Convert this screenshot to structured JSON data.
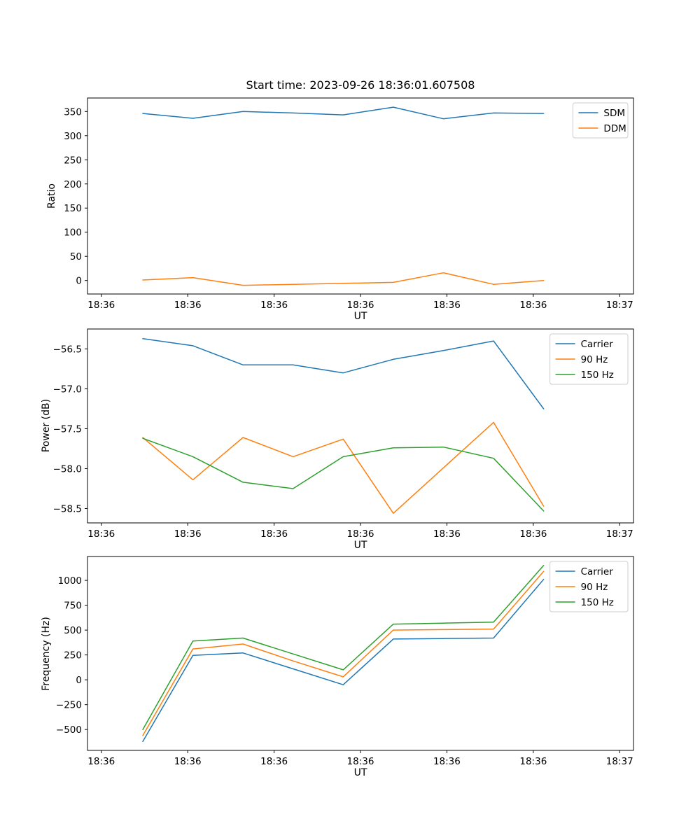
{
  "figure": {
    "background": "#ffffff",
    "frame_color": "#000000",
    "legend_border_color": "#cccccc"
  },
  "chart_data": [
    {
      "type": "line",
      "title": "Start time: 2023-09-26 18:36:01.607508",
      "xlabel": "UT",
      "ylabel": "Ratio",
      "legend_position": "upper right",
      "grid": false,
      "x": [
        4.8,
        10.6,
        16.4,
        22.2,
        28.0,
        33.8,
        39.6,
        45.4,
        51.2
      ],
      "xlim": [
        -1.6,
        61.6
      ],
      "xtick_positions": [
        0,
        10,
        20,
        30,
        40,
        50,
        60
      ],
      "xtick_labels": [
        "18:36",
        "18:36",
        "18:36",
        "18:36",
        "18:36",
        "18:36",
        "18:37"
      ],
      "ylim": [
        -28,
        378
      ],
      "yticks": [
        0,
        50,
        100,
        150,
        200,
        250,
        300,
        350
      ],
      "series": [
        {
          "name": "SDM",
          "color": "#1f77b4",
          "values": [
            346,
            336,
            350,
            347,
            343,
            359,
            335,
            347,
            346
          ]
        },
        {
          "name": "DDM",
          "color": "#ff7f0e",
          "values": [
            1,
            6,
            -10,
            -8,
            -6,
            -4,
            16,
            -8,
            0
          ]
        }
      ]
    },
    {
      "type": "line",
      "xlabel": "UT",
      "ylabel": "Power (dB)",
      "legend_position": "upper right",
      "grid": false,
      "x": [
        4.8,
        10.6,
        16.4,
        22.2,
        28.0,
        33.8,
        39.6,
        45.4,
        51.2
      ],
      "xlim": [
        -1.6,
        61.6
      ],
      "xtick_positions": [
        0,
        10,
        20,
        30,
        40,
        50,
        60
      ],
      "xtick_labels": [
        "18:36",
        "18:36",
        "18:36",
        "18:36",
        "18:36",
        "18:36",
        "18:37"
      ],
      "ylim": [
        -58.68,
        -56.25
      ],
      "yticks": [
        -58.5,
        -58.0,
        -57.5,
        -57.0,
        -56.5
      ],
      "series": [
        {
          "name": "Carrier",
          "color": "#1f77b4",
          "values": [
            -56.37,
            -56.46,
            -56.7,
            -56.7,
            -56.8,
            -56.63,
            -56.52,
            -56.4,
            -57.25
          ]
        },
        {
          "name": "90 Hz",
          "color": "#ff7f0e",
          "values": [
            -57.61,
            -58.14,
            -57.61,
            -57.85,
            -57.63,
            -58.56,
            -57.99,
            -57.42,
            -58.47
          ]
        },
        {
          "name": "150 Hz",
          "color": "#2ca02c",
          "values": [
            -57.62,
            -57.85,
            -58.17,
            -58.25,
            -57.85,
            -57.74,
            -57.73,
            -57.87,
            -58.53
          ]
        }
      ]
    },
    {
      "type": "line",
      "xlabel": "UT",
      "ylabel": "Frequency (Hz)",
      "legend_position": "upper right",
      "grid": false,
      "x": [
        4.8,
        10.6,
        16.4,
        22.2,
        28.0,
        33.8,
        39.6,
        45.4,
        51.2
      ],
      "xlim": [
        -1.6,
        61.6
      ],
      "xtick_positions": [
        0,
        10,
        20,
        30,
        40,
        50,
        60
      ],
      "xtick_labels": [
        "18:36",
        "18:36",
        "18:36",
        "18:36",
        "18:36",
        "18:36",
        "18:37"
      ],
      "ylim": [
        -710,
        1240
      ],
      "yticks": [
        -500,
        -250,
        0,
        250,
        500,
        750,
        1000
      ],
      "series": [
        {
          "name": "Carrier",
          "color": "#1f77b4",
          "values": [
            -620,
            245,
            270,
            110,
            -50,
            410,
            415,
            420,
            1010
          ]
        },
        {
          "name": "90 Hz",
          "color": "#ff7f0e",
          "values": [
            -560,
            310,
            360,
            190,
            30,
            500,
            505,
            510,
            1090
          ]
        },
        {
          "name": "150 Hz",
          "color": "#2ca02c",
          "values": [
            -500,
            390,
            420,
            260,
            100,
            560,
            570,
            580,
            1150
          ]
        }
      ]
    }
  ]
}
